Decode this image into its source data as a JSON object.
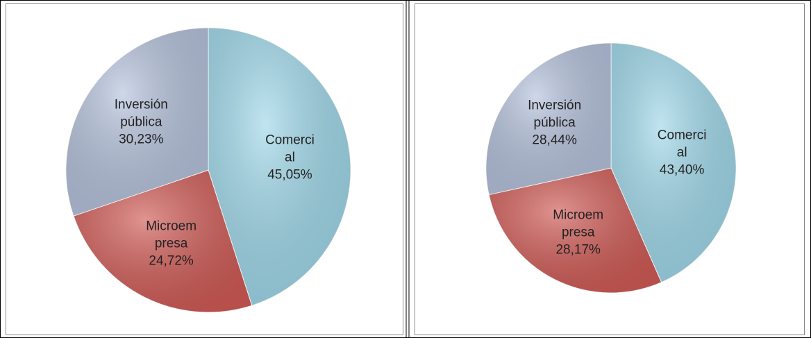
{
  "chart_data": [
    {
      "type": "pie",
      "categories": [
        "Comercial",
        "Microempresa",
        "Inversión pública"
      ],
      "values": [
        45.05,
        24.72,
        30.23
      ],
      "value_labels": [
        "45,05%",
        "24,72%",
        "30,23%"
      ],
      "colors": [
        "#9fd8ea",
        "#d05a55",
        "#b5c2dc"
      ]
    },
    {
      "type": "pie",
      "categories": [
        "Comercial",
        "Microempresa",
        "Inversión pública"
      ],
      "values": [
        43.4,
        28.17,
        28.44
      ],
      "value_labels": [
        "43,40%",
        "28,17%",
        "28,44%"
      ],
      "colors": [
        "#9fd8ea",
        "#d05a55",
        "#b5c2dc"
      ]
    }
  ]
}
